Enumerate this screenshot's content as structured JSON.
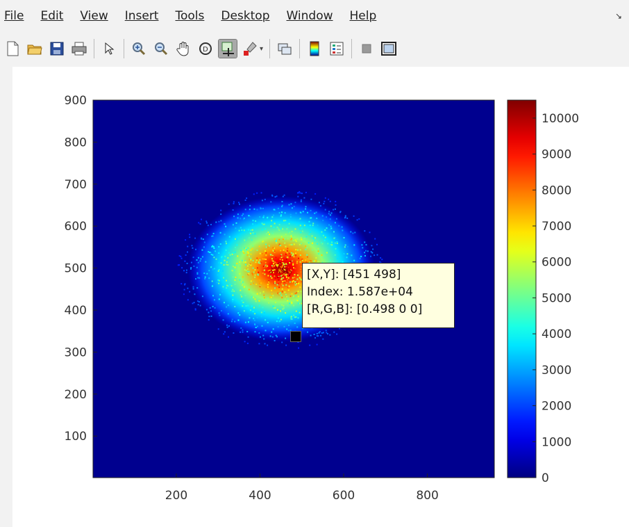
{
  "menubar": {
    "items": [
      {
        "label": "File",
        "name": "menu-file"
      },
      {
        "label": "Edit",
        "name": "menu-edit"
      },
      {
        "label": "View",
        "name": "menu-view"
      },
      {
        "label": "Insert",
        "name": "menu-insert"
      },
      {
        "label": "Tools",
        "name": "menu-tools"
      },
      {
        "label": "Desktop",
        "name": "menu-desktop"
      },
      {
        "label": "Window",
        "name": "menu-window"
      },
      {
        "label": "Help",
        "name": "menu-help"
      }
    ],
    "collapse_glyph": "↘"
  },
  "toolbar": {
    "icons": [
      "new-figure-icon",
      "open-file-icon",
      "save-icon",
      "print-icon",
      "select-arrow-icon",
      "zoom-in-icon",
      "zoom-out-icon",
      "pan-hand-icon",
      "rotate-3d-icon",
      "data-cursor-icon",
      "brush-icon",
      "link-plot-icon",
      "colorbar-icon",
      "legend-icon",
      "hide-plot-tools-icon",
      "show-plot-tools-icon"
    ],
    "active": "data-cursor-icon"
  },
  "datatip": {
    "line1": "[X,Y]: [451 498]",
    "line2": "Index: 1.587e+04",
    "line3": "[R,G,B]: [0.498 0 0]"
  },
  "chart_data": {
    "type": "heatmap",
    "title": "",
    "xlabel": "",
    "ylabel": "",
    "x_ticks": [
      200,
      400,
      600,
      800
    ],
    "y_ticks": [
      100,
      200,
      300,
      400,
      500,
      600,
      700,
      800,
      900
    ],
    "xlim": [
      1,
      960
    ],
    "ylim": [
      1,
      900
    ],
    "colormap": "jet",
    "clim": [
      0,
      10500
    ],
    "colorbar_ticks": [
      0,
      1000,
      2000,
      3000,
      4000,
      5000,
      6000,
      7000,
      8000,
      9000,
      10000
    ],
    "peak": {
      "x": 451,
      "y": 498
    },
    "background_color": "#00008f",
    "grid": false
  }
}
